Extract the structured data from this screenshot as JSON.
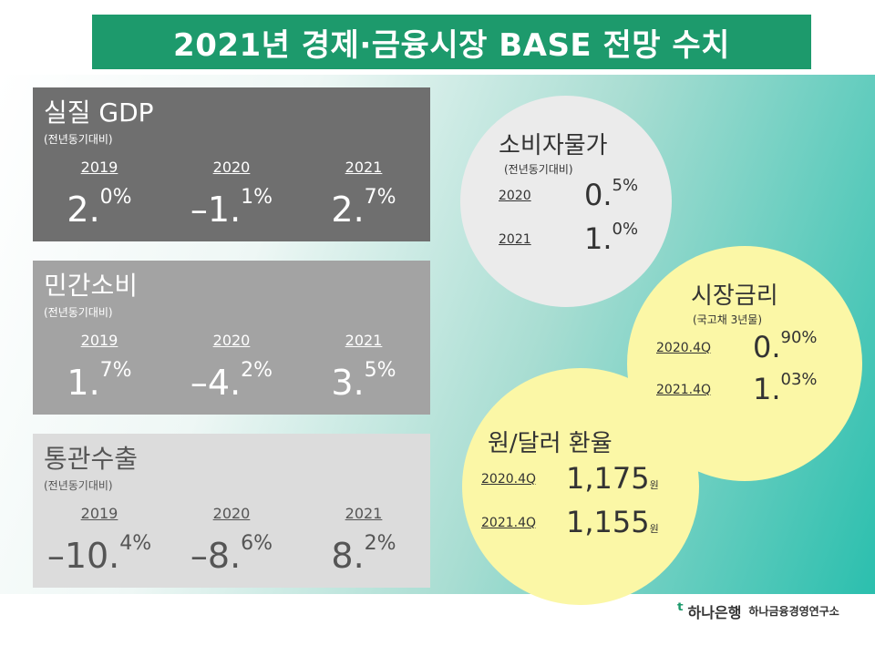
{
  "title": "2021년 경제·금융시장 BASE 전망 수치",
  "panels": [
    {
      "title": "실질 GDP",
      "subtitle": "(전년동기대비)",
      "items": [
        {
          "year": "2019",
          "value": "2.",
          "sup": "0%"
        },
        {
          "year": "2020",
          "value": "–1.",
          "sup": "1%"
        },
        {
          "year": "2021",
          "value": "2.",
          "sup": "7%"
        }
      ]
    },
    {
      "title": "민간소비",
      "subtitle": "(전년동기대비)",
      "items": [
        {
          "year": "2019",
          "value": "1.",
          "sup": "7%"
        },
        {
          "year": "2020",
          "value": "–4.",
          "sup": "2%"
        },
        {
          "year": "2021",
          "value": "3.",
          "sup": "5%"
        }
      ]
    },
    {
      "title": "통관수출",
      "subtitle": "(전년동기대비)",
      "items": [
        {
          "year": "2019",
          "value": "–10.",
          "sup": "4%"
        },
        {
          "year": "2020",
          "value": "–8.",
          "sup": "6%"
        },
        {
          "year": "2021",
          "value": "8.",
          "sup": "2%"
        }
      ]
    }
  ],
  "circles": {
    "cpi": {
      "title": "소비자물가",
      "subtitle": "(전년동기대비)",
      "items": [
        {
          "label": "2020",
          "value": "0.",
          "sup": "5%"
        },
        {
          "label": "2021",
          "value": "1.",
          "sup": "0%"
        }
      ]
    },
    "rate": {
      "title": "시장금리",
      "subtitle": "(국고채 3년물)",
      "items": [
        {
          "label": "2020.4Q",
          "value": "0.",
          "sup": "90%"
        },
        {
          "label": "2021.4Q",
          "value": "1.",
          "sup": "03%"
        }
      ]
    },
    "fx": {
      "title": "원/달러 환율",
      "items": [
        {
          "label": "2020.4Q",
          "value": "1,175",
          "unit": "원"
        },
        {
          "label": "2021.4Q",
          "value": "1,155",
          "unit": "원"
        }
      ]
    }
  },
  "logo": {
    "brand": "하나은행",
    "institute": "하나금융경영연구소"
  }
}
